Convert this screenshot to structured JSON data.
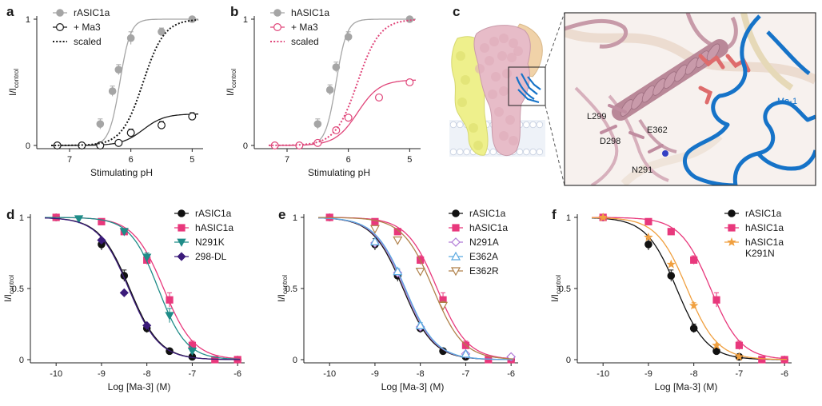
{
  "figure": {
    "panels": [
      {
        "id": "a",
        "label": "a"
      },
      {
        "id": "b",
        "label": "b"
      },
      {
        "id": "c",
        "label": "c"
      },
      {
        "id": "d",
        "label": "d"
      },
      {
        "id": "e",
        "label": "e"
      },
      {
        "id": "f",
        "label": "f"
      }
    ],
    "structure": {
      "labels": [
        "L299",
        "E362",
        "D298",
        "N291",
        "Ma-1"
      ],
      "colors": {
        "channel": "#e7bcc8",
        "channel_dark": "#c08da0",
        "subunit_yellow": "#eef08c",
        "toxin": "#1673c8",
        "membrane": "#d9e2f0"
      }
    }
  },
  "chart_data": [
    {
      "panel": "a",
      "type": "line",
      "xlabel": "Stimulating pH",
      "ylabel": "I/I",
      "ylabel_sub": "control",
      "xlim": [
        7.3,
        4.9
      ],
      "ylim": [
        0,
        1
      ],
      "xticks": [
        "7",
        "6",
        "5"
      ],
      "yticks": [
        "0",
        "1"
      ],
      "legend_position": "top-left",
      "series": [
        {
          "name": "rASIC1a",
          "color": "#a5a5a5",
          "marker": "filled-circle",
          "x": [
            7.2,
            6.8,
            6.5,
            6.3,
            6.2,
            6.0,
            5.5,
            5.0
          ],
          "y": [
            0.0,
            0.0,
            0.17,
            0.43,
            0.6,
            0.85,
            0.9,
            1.0
          ],
          "err": [
            0.01,
            0.01,
            0.04,
            0.04,
            0.04,
            0.05,
            0.03,
            0.01
          ],
          "fit": {
            "pH50": 6.18,
            "n": 5,
            "top": 1.0
          }
        },
        {
          "name": "+ Ma3",
          "color": "#1a1a1a",
          "marker": "open-circle",
          "x": [
            7.2,
            6.8,
            6.5,
            6.2,
            6.0,
            5.5,
            5.0
          ],
          "y": [
            0.0,
            0.0,
            0.0,
            0.02,
            0.1,
            0.16,
            0.23
          ],
          "err": [
            0.01,
            0.01,
            0.01,
            0.01,
            0.03,
            0.03,
            0.03
          ],
          "fit": {
            "pH50": 5.8,
            "n": 2.5,
            "top": 0.25
          }
        },
        {
          "name": "scaled",
          "color": "#1a1a1a",
          "dashed": true,
          "fit": {
            "pH50": 5.8,
            "n": 2.5,
            "top": 1.0
          }
        }
      ]
    },
    {
      "panel": "b",
      "type": "line",
      "xlabel": "Stimulating pH",
      "ylabel": "I/I",
      "ylabel_sub": "control",
      "xlim": [
        7.3,
        4.9
      ],
      "ylim": [
        0,
        1
      ],
      "xticks": [
        "7",
        "6",
        "5"
      ],
      "yticks": [
        "0",
        "1"
      ],
      "legend_position": "top-left",
      "series": [
        {
          "name": "hASIC1a",
          "color": "#a5a5a5",
          "marker": "filled-circle",
          "x": [
            7.2,
            6.8,
            6.5,
            6.3,
            6.2,
            6.0,
            5.0
          ],
          "y": [
            0.0,
            0.0,
            0.17,
            0.44,
            0.62,
            0.86,
            1.0
          ],
          "err": [
            0.01,
            0.01,
            0.04,
            0.04,
            0.04,
            0.04,
            0.01
          ],
          "fit": {
            "pH50": 6.2,
            "n": 5,
            "top": 1.0
          }
        },
        {
          "name": "+ Ma3",
          "color": "#e0467a",
          "marker": "open-circle",
          "x": [
            7.2,
            6.8,
            6.5,
            6.2,
            6.0,
            5.5,
            5.0
          ],
          "y": [
            0.0,
            0.0,
            0.02,
            0.12,
            0.22,
            0.38,
            0.5
          ],
          "err": [
            0.01,
            0.01,
            0.01,
            0.02,
            0.02,
            0.02,
            0.02
          ],
          "fit": {
            "pH50": 5.85,
            "n": 2.4,
            "top": 0.52
          }
        },
        {
          "name": "scaled",
          "color": "#e0467a",
          "dashed": true,
          "fit": {
            "pH50": 5.85,
            "n": 2.4,
            "top": 1.0
          }
        }
      ]
    },
    {
      "panel": "d",
      "type": "line",
      "xlabel": "Log [Ma-3] (M)",
      "ylabel": "I/I",
      "ylabel_sub": "control",
      "xlim": [
        -10.25,
        -5.95
      ],
      "ylim": [
        0,
        1
      ],
      "xticks": [
        "-10",
        "-9",
        "-8",
        "-7",
        "-6"
      ],
      "yticks": [
        "0",
        "0.5",
        "1"
      ],
      "legend_position": "top-right",
      "series": [
        {
          "name": "rASIC1a",
          "color": "#111111",
          "marker": "filled-circle",
          "x": [
            -10,
            -9,
            -8.5,
            -8,
            -7.5,
            -7,
            -6
          ],
          "y": [
            1.0,
            0.81,
            0.59,
            0.22,
            0.06,
            0.02,
            0.0
          ],
          "err": [
            0.01,
            0.04,
            0.04,
            0.03,
            0.01,
            0.01,
            0.0
          ],
          "fit": {
            "logIC50": -8.38,
            "n": 1.3
          }
        },
        {
          "name": "hASIC1a",
          "color": "#e8387c",
          "marker": "filled-square",
          "x": [
            -10,
            -9,
            -8.5,
            -8,
            -7.5,
            -7,
            -6.5,
            -6
          ],
          "y": [
            1.0,
            0.97,
            0.9,
            0.7,
            0.42,
            0.1,
            0.0,
            0.0
          ],
          "err": [
            0.01,
            0.02,
            0.02,
            0.03,
            0.05,
            0.03,
            0.01,
            0.0
          ],
          "fit": {
            "logIC50": -7.63,
            "n": 1.3
          }
        },
        {
          "name": "N291K",
          "color": "#1f8c88",
          "marker": "filled-triangle-down",
          "x": [
            -9.5,
            -8.5,
            -8,
            -7.5,
            -7
          ],
          "y": [
            0.99,
            0.9,
            0.72,
            0.31,
            0.06
          ],
          "err": [
            0.01,
            0.02,
            0.03,
            0.05,
            0.02
          ],
          "fit": {
            "logIC50": -7.75,
            "n": 1.4
          }
        },
        {
          "name": "298-DL",
          "color": "#3b1b7a",
          "marker": "filled-diamond",
          "x": [
            -9,
            -8.5,
            -8
          ],
          "y": [
            0.84,
            0.47,
            0.24
          ],
          "err": [
            0.01,
            0.01,
            0.01
          ],
          "fit": {
            "logIC50": -8.4,
            "n": 1.3
          }
        }
      ]
    },
    {
      "panel": "e",
      "type": "line",
      "xlabel": "Log [Ma-3] (M)",
      "ylabel": "I/I",
      "ylabel_sub": "control",
      "xlim": [
        -10.25,
        -5.95
      ],
      "ylim": [
        0,
        1
      ],
      "xticks": [
        "-10",
        "-9",
        "-8",
        "-7",
        "-6"
      ],
      "yticks": [
        "0",
        "0.5",
        "1"
      ],
      "legend_position": "top-right",
      "series": [
        {
          "name": "rASIC1a",
          "color": "#111111",
          "marker": "filled-circle",
          "x": [
            -10,
            -9,
            -8.5,
            -8,
            -7.5,
            -7,
            -6
          ],
          "y": [
            1.0,
            0.81,
            0.59,
            0.22,
            0.06,
            0.02,
            0.0
          ],
          "err": [
            0.01,
            0.04,
            0.04,
            0.03,
            0.01,
            0.01,
            0.0
          ],
          "fit": {
            "logIC50": -8.38,
            "n": 1.3
          }
        },
        {
          "name": "hASIC1a",
          "color": "#e8387c",
          "marker": "filled-square",
          "x": [
            -10,
            -9,
            -8.5,
            -8,
            -7.5,
            -7,
            -6.5,
            -6
          ],
          "y": [
            1.0,
            0.97,
            0.9,
            0.7,
            0.42,
            0.1,
            0.0,
            0.0
          ],
          "err": [
            0.01,
            0.02,
            0.02,
            0.03,
            0.05,
            0.03,
            0.01,
            0.0
          ],
          "fit": {
            "logIC50": -7.63,
            "n": 1.3
          }
        },
        {
          "name": "N291A",
          "color": "#b07ad6",
          "marker": "open-diamond",
          "x": [
            -9,
            -8.5,
            -8,
            -7,
            -6
          ],
          "y": [
            0.82,
            0.61,
            0.23,
            0.04,
            0.02
          ],
          "err": [
            0.01,
            0.02,
            0.02,
            0.01,
            0.01
          ],
          "fit": {
            "logIC50": -8.35,
            "n": 1.3
          }
        },
        {
          "name": "E362A",
          "color": "#5aa9e0",
          "marker": "open-triangle-up",
          "x": [
            -9,
            -8.5,
            -8,
            -7
          ],
          "y": [
            0.83,
            0.62,
            0.24,
            0.04
          ],
          "err": [
            0.01,
            0.02,
            0.02,
            0.01
          ],
          "fit": {
            "logIC50": -8.33,
            "n": 1.3
          }
        },
        {
          "name": "E362R",
          "color": "#b0814a",
          "marker": "open-triangle-down",
          "x": [
            -9,
            -8.5,
            -8,
            -7.5
          ],
          "y": [
            0.92,
            0.84,
            0.62,
            0.38
          ],
          "err": [
            0.01,
            0.02,
            0.02,
            0.03
          ],
          "fit": {
            "logIC50": -7.72,
            "n": 1.3
          }
        }
      ]
    },
    {
      "panel": "f",
      "type": "line",
      "xlabel": "Log [Ma-3] (M)",
      "ylabel": "I/I",
      "ylabel_sub": "control",
      "xlim": [
        -10.25,
        -5.95
      ],
      "ylim": [
        0,
        1
      ],
      "xticks": [
        "-10",
        "-9",
        "-8",
        "-7",
        "-6"
      ],
      "yticks": [
        "0",
        "0.5",
        "1"
      ],
      "legend_position": "top-right",
      "series": [
        {
          "name": "rASIC1a",
          "color": "#111111",
          "marker": "filled-circle",
          "x": [
            -10,
            -9,
            -8.5,
            -8,
            -7.5,
            -7,
            -6
          ],
          "y": [
            1.0,
            0.81,
            0.59,
            0.22,
            0.06,
            0.02,
            0.0
          ],
          "err": [
            0.01,
            0.04,
            0.04,
            0.03,
            0.01,
            0.01,
            0.0
          ],
          "fit": {
            "logIC50": -8.38,
            "n": 1.3
          }
        },
        {
          "name": "hASIC1a",
          "color": "#e8387c",
          "marker": "filled-square",
          "x": [
            -10,
            -9,
            -8.5,
            -8,
            -7.5,
            -7,
            -6.5,
            -6
          ],
          "y": [
            1.0,
            0.97,
            0.9,
            0.7,
            0.42,
            0.1,
            0.0,
            0.0
          ],
          "err": [
            0.01,
            0.02,
            0.02,
            0.03,
            0.05,
            0.03,
            0.01,
            0.0
          ],
          "fit": {
            "logIC50": -7.63,
            "n": 1.3
          }
        },
        {
          "name": "hASIC1a\nK291N",
          "color": "#f0a040",
          "marker": "filled-star",
          "x": [
            -10,
            -9,
            -8.5,
            -8,
            -7.5,
            -7
          ],
          "y": [
            1.0,
            0.86,
            0.67,
            0.38,
            0.1,
            0.02
          ],
          "err": [
            0.01,
            0.01,
            0.01,
            0.02,
            0.01,
            0.01
          ],
          "fit": {
            "logIC50": -8.15,
            "n": 1.3
          }
        }
      ]
    }
  ]
}
